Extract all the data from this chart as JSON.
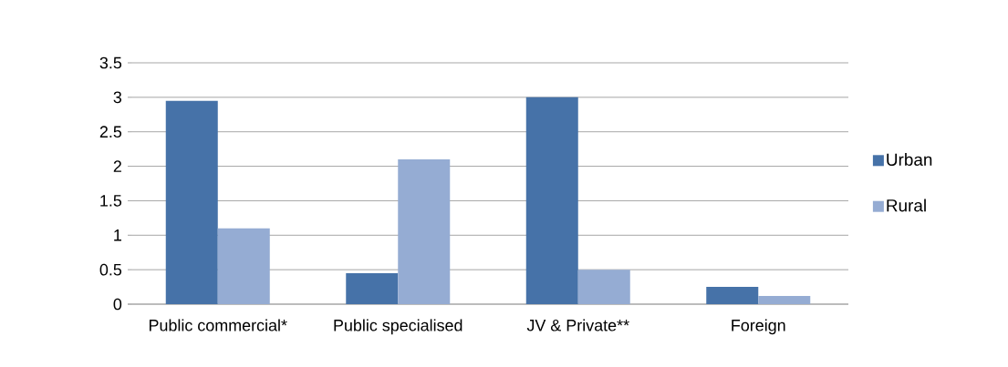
{
  "chart_data": {
    "type": "bar",
    "categories": [
      "Public commercial*",
      "Public specialised",
      "JV & Private**",
      "Foreign"
    ],
    "series": [
      {
        "name": "Urban",
        "color": "#4672a8",
        "values": [
          2.95,
          0.45,
          3.0,
          0.25
        ]
      },
      {
        "name": "Rural",
        "color": "#95acd3",
        "values": [
          1.1,
          2.1,
          0.5,
          0.12
        ]
      }
    ],
    "ylim": [
      0,
      3.5
    ],
    "yticks": [
      0,
      0.5,
      1,
      1.5,
      2,
      2.5,
      3,
      3.5
    ],
    "grid": "y",
    "legend": "right"
  }
}
